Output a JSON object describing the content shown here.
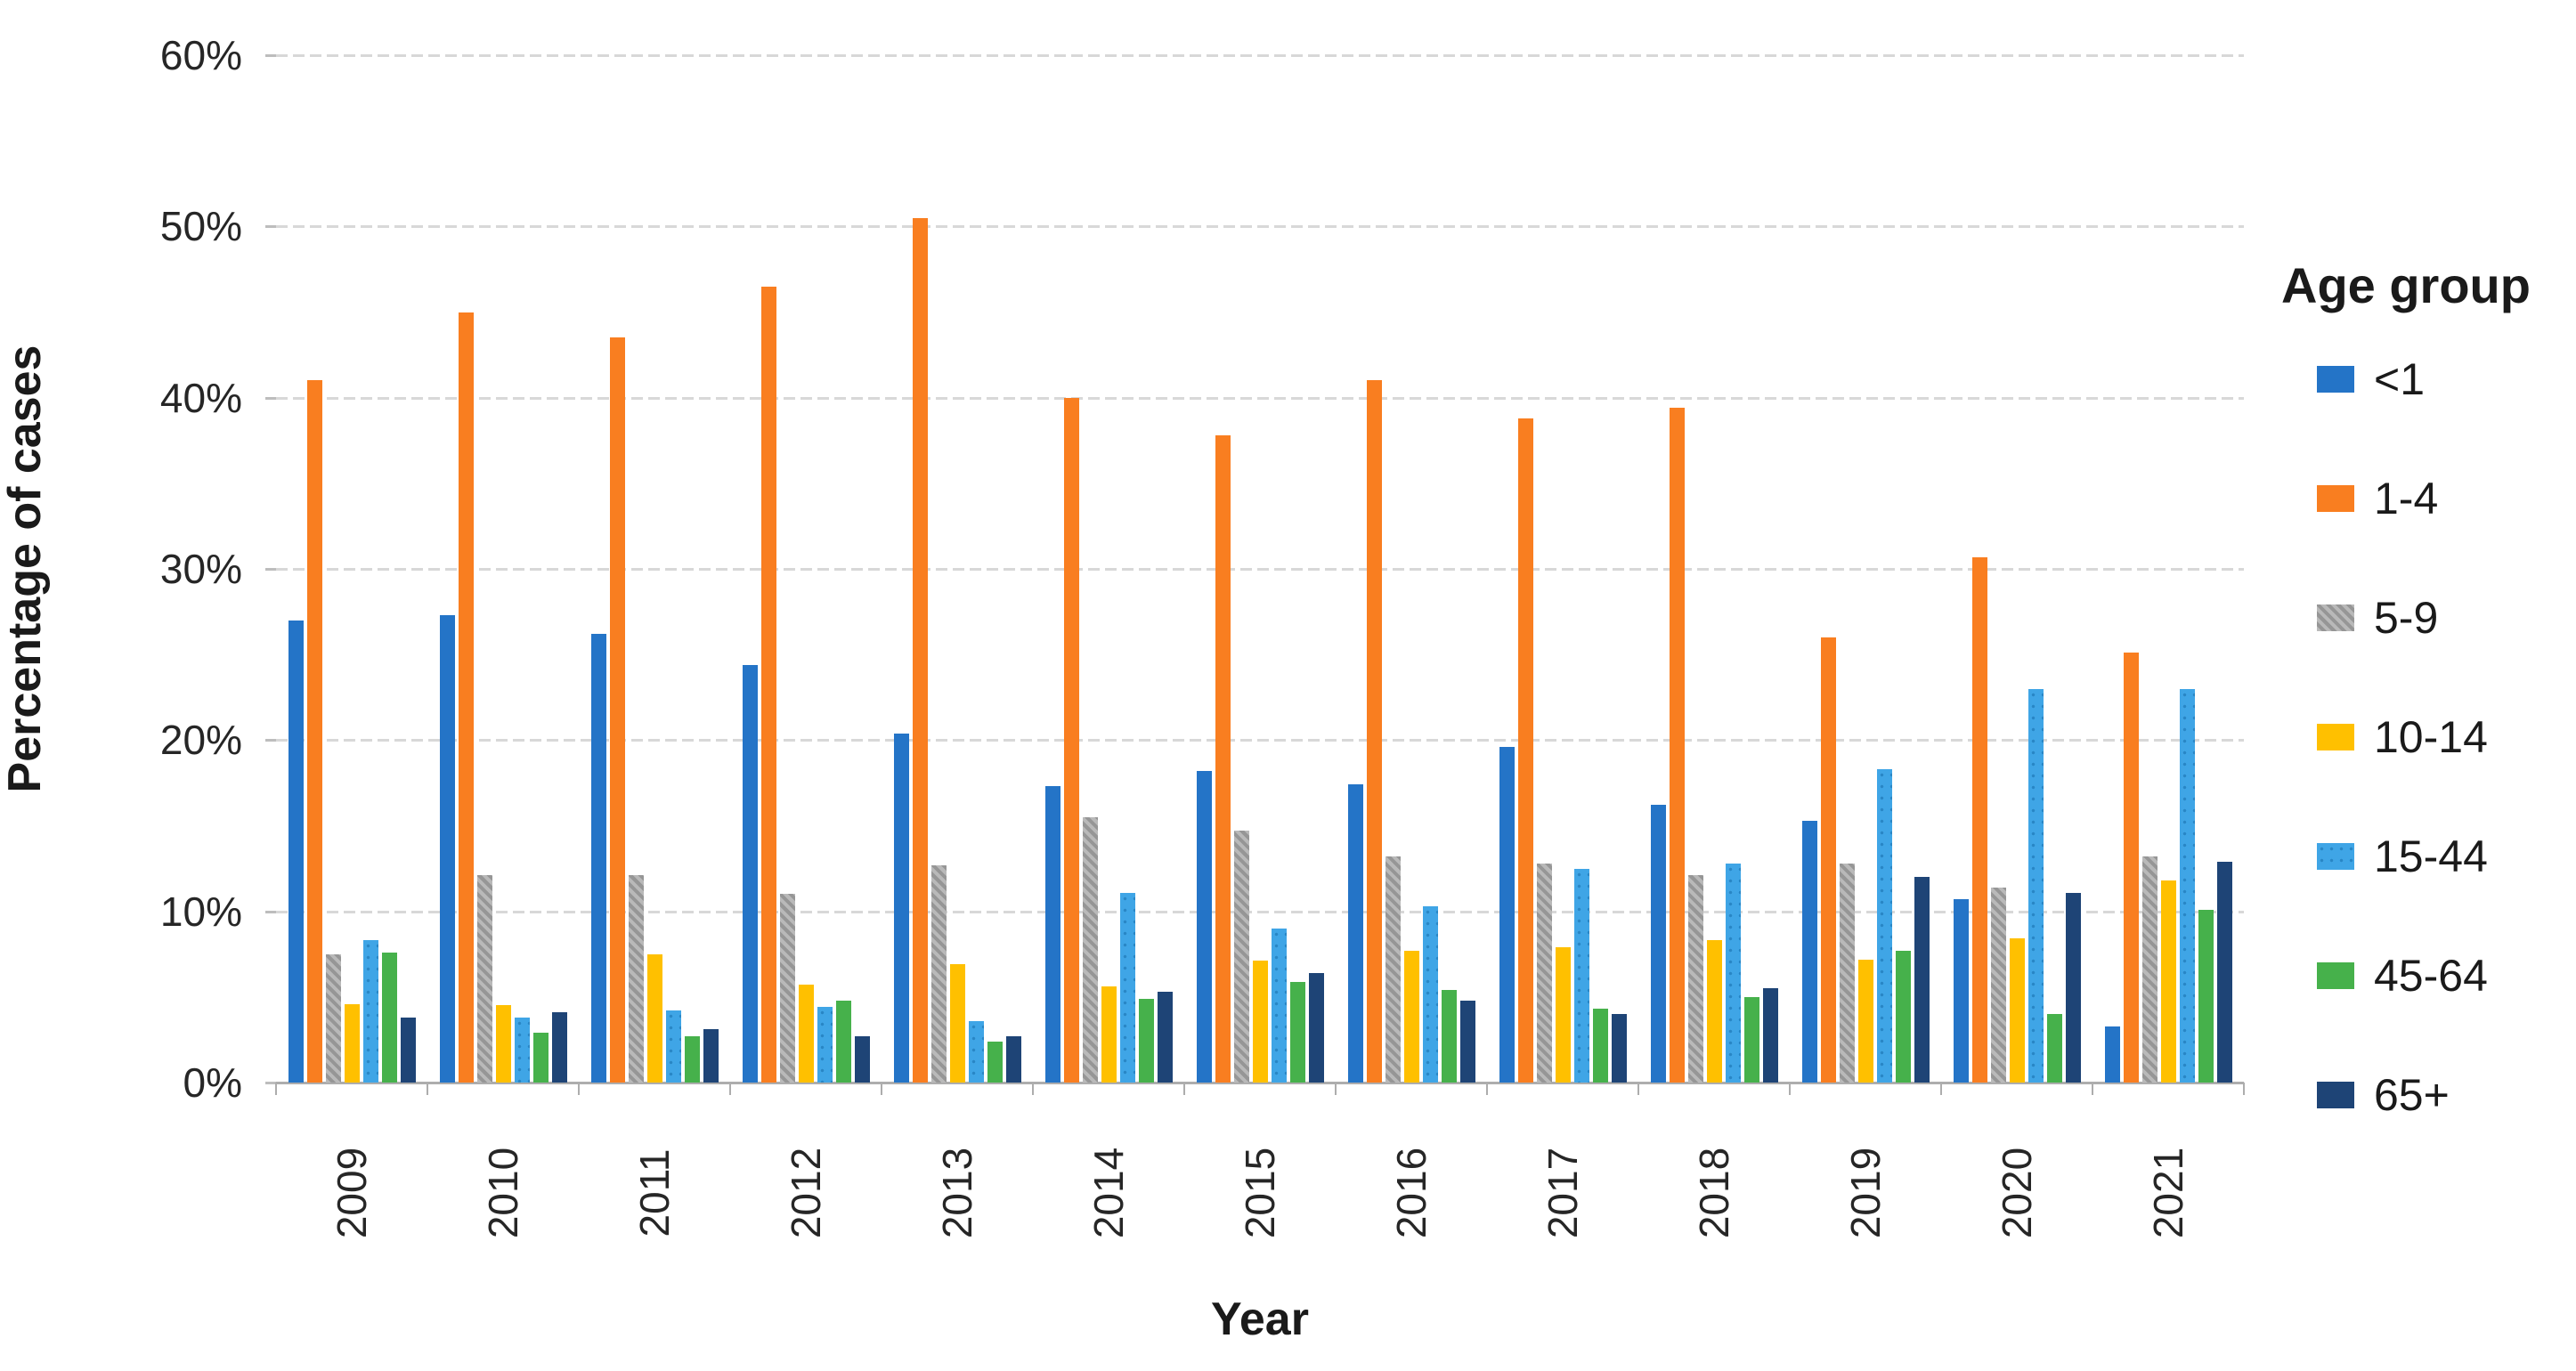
{
  "chart_data": {
    "type": "bar",
    "title": "",
    "xlabel": "Year",
    "ylabel": "Percentage of cases",
    "legend_title": "Age group",
    "legend_position": "right",
    "grid": true,
    "ylim": [
      0,
      60
    ],
    "y_tick_step": 10,
    "y_tick_labels": [
      "0%",
      "10%",
      "20%",
      "30%",
      "40%",
      "50%",
      "60%"
    ],
    "categories": [
      "2009",
      "2010",
      "2011",
      "2012",
      "2013",
      "2014",
      "2015",
      "2016",
      "2017",
      "2018",
      "2019",
      "2020",
      "2021"
    ],
    "series": [
      {
        "name": "<1",
        "color": "#2474C7",
        "pattern": "solid",
        "values": [
          27.0,
          27.3,
          26.2,
          24.4,
          20.4,
          17.3,
          18.2,
          17.4,
          19.6,
          16.2,
          15.3,
          10.7,
          3.3
        ]
      },
      {
        "name": "1-4",
        "color": "#F97E20",
        "pattern": "solid",
        "values": [
          41.0,
          45.0,
          43.5,
          46.5,
          50.5,
          40.0,
          37.8,
          41.0,
          38.8,
          39.4,
          26.0,
          30.7,
          25.1
        ]
      },
      {
        "name": "5-9",
        "color": "#ABABAB",
        "pattern": "hatch",
        "values": [
          7.5,
          12.1,
          12.1,
          11.0,
          12.7,
          15.5,
          14.7,
          13.2,
          12.8,
          12.1,
          12.8,
          11.4,
          13.2
        ]
      },
      {
        "name": "10-14",
        "color": "#FFC000",
        "pattern": "solid",
        "values": [
          4.6,
          4.5,
          7.5,
          5.7,
          6.9,
          5.6,
          7.1,
          7.7,
          7.9,
          8.3,
          7.2,
          8.4,
          11.8
        ]
      },
      {
        "name": "15-44",
        "color": "#3FA5E6",
        "pattern": "dots",
        "values": [
          8.3,
          3.8,
          4.2,
          4.4,
          3.6,
          11.1,
          9.0,
          10.3,
          12.5,
          12.8,
          18.3,
          23.0,
          23.0
        ]
      },
      {
        "name": "45-64",
        "color": "#46B14B",
        "pattern": "solid",
        "values": [
          7.6,
          2.9,
          2.7,
          4.8,
          2.4,
          4.9,
          5.9,
          5.4,
          4.3,
          5.0,
          7.7,
          4.0,
          10.1
        ]
      },
      {
        "name": "65+",
        "color": "#1E4476",
        "pattern": "solid",
        "values": [
          3.8,
          4.1,
          3.1,
          2.7,
          2.7,
          5.3,
          6.4,
          4.8,
          4.0,
          5.5,
          12.0,
          11.1,
          12.9
        ]
      }
    ]
  }
}
